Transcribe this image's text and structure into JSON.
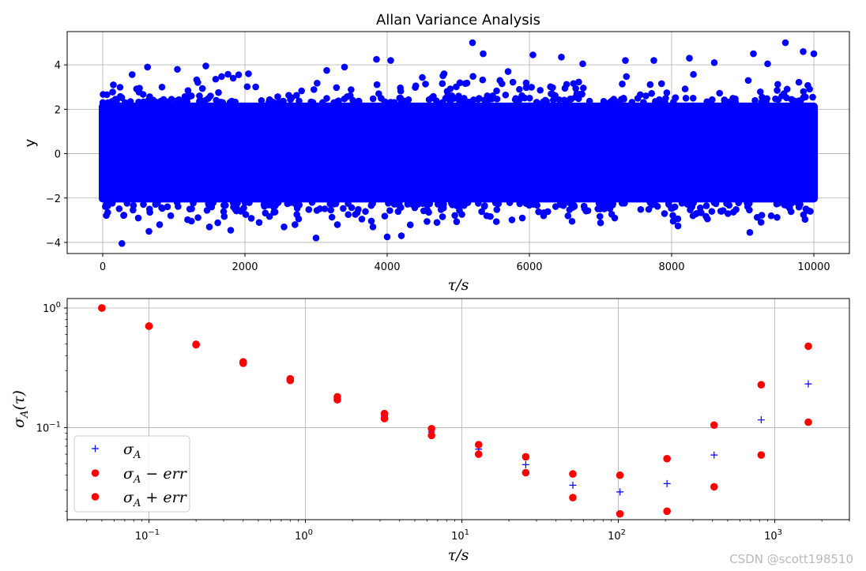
{
  "chart_data": [
    {
      "type": "scatter",
      "title": "Allan Variance Analysis",
      "xlabel": "τ/s",
      "ylabel": "y",
      "xlim": [
        -500,
        10500
      ],
      "ylim": [
        -4.5,
        5.5
      ],
      "xticks": [
        0,
        2000,
        4000,
        6000,
        8000,
        10000
      ],
      "xtick_labels": [
        "0",
        "2000",
        "4000",
        "6000",
        "8000",
        "10000"
      ],
      "yticks": [
        -4,
        -2,
        0,
        2,
        4
      ],
      "ytick_labels": [
        "−4",
        "−2",
        "0",
        "2",
        "4"
      ],
      "grid": true,
      "color": "#0000ff",
      "series": [
        {
          "x_range": [
            0,
            10000
          ],
          "band_low": -2.2,
          "band_high": 2.3,
          "outliers": [
            [
              270,
              -4.05
            ],
            [
              3000,
              -3.8
            ],
            [
              4000,
              -3.75
            ],
            [
              4200,
              -3.7
            ],
            [
              9100,
              -3.55
            ],
            [
              650,
              -3.5
            ],
            [
              1800,
              -3.45
            ],
            [
              2550,
              -3.3
            ],
            [
              4700,
              -3.1
            ],
            [
              6600,
              -3.05
            ],
            [
              5200,
              5.0
            ],
            [
              9600,
              5.0
            ],
            [
              9850,
              4.6
            ],
            [
              5350,
              4.5
            ],
            [
              9150,
              4.5
            ],
            [
              3850,
              4.25
            ],
            [
              4050,
              4.2
            ],
            [
              6050,
              4.45
            ],
            [
              6450,
              4.35
            ],
            [
              7750,
              4.2
            ],
            [
              8250,
              4.3
            ],
            [
              1450,
              3.95
            ],
            [
              630,
              3.9
            ],
            [
              9350,
              4.05
            ],
            [
              10000,
              4.5
            ],
            [
              1050,
              3.8
            ],
            [
              3150,
              3.75
            ],
            [
              5700,
              3.7
            ],
            [
              8600,
              4.1
            ],
            [
              7350,
              4.2
            ],
            [
              150,
              3.1
            ],
            [
              2050,
              3.6
            ],
            [
              3400,
              3.9
            ],
            [
              4800,
              3.6
            ],
            [
              6750,
              4.05
            ],
            [
              800,
              -3.2
            ],
            [
              1500,
              -3.3
            ],
            [
              2200,
              -3.1
            ],
            [
              3300,
              -3.2
            ],
            [
              3800,
              -3.3
            ],
            [
              5400,
              -2.8
            ],
            [
              6200,
              -2.8
            ],
            [
              7200,
              -2.9
            ],
            [
              7900,
              -2.7
            ],
            [
              8700,
              -2.6
            ],
            [
              9400,
              -2.8
            ],
            [
              9950,
              -2.6
            ],
            [
              500,
              -2.9
            ],
            [
              5900,
              -2.9
            ],
            [
              8300,
              -2.8
            ]
          ]
        }
      ]
    },
    {
      "type": "scatter",
      "xlabel": "τ/s",
      "ylabel": "σ_A(τ)",
      "xscale": "log",
      "yscale": "log",
      "xlim": [
        0.03,
        3000
      ],
      "ylim": [
        0.017,
        1.2
      ],
      "xticks": [
        0.1,
        1,
        10,
        100,
        1000
      ],
      "xtick_labels": [
        {
          "base": "10",
          "exp": "−1"
        },
        {
          "base": "10",
          "exp": "0"
        },
        {
          "base": "10",
          "exp": "1"
        },
        {
          "base": "10",
          "exp": "2"
        },
        {
          "base": "10",
          "exp": "3"
        }
      ],
      "yticks": [
        0.1,
        1
      ],
      "ytick_labels": [
        {
          "base": "10",
          "exp": "−1"
        },
        {
          "base": "10",
          "exp": "0"
        }
      ],
      "grid": true,
      "legend": "lower-left",
      "x": [
        0.05,
        0.1,
        0.2,
        0.4,
        0.8,
        1.6,
        3.2,
        6.4,
        12.8,
        25.6,
        51.2,
        102.4,
        204.8,
        409.6,
        819.2,
        1638.4
      ],
      "series": [
        {
          "name": "σ_A",
          "legend_label": {
            "main": "σ",
            "sub": "A",
            "rest": ""
          },
          "marker": "plus",
          "color": "#0000ff",
          "values": [
            1.0,
            0.705,
            0.495,
            0.35,
            0.252,
            0.176,
            0.125,
            0.092,
            0.066,
            0.049,
            0.033,
            0.029,
            0.034,
            0.059,
            0.116,
            0.232
          ]
        },
        {
          "name": "σ_A − err",
          "legend_label": {
            "main": "σ",
            "sub": "A",
            "rest": " − err"
          },
          "marker": "circle",
          "color": "#ff0000",
          "values": [
            1.0,
            0.705,
            0.493,
            0.345,
            0.248,
            0.171,
            0.119,
            0.086,
            0.06,
            0.042,
            0.026,
            0.019,
            0.02,
            0.032,
            0.059,
            0.111
          ]
        },
        {
          "name": "σ_A + err",
          "legend_label": {
            "main": "σ",
            "sub": "A",
            "rest": " + err"
          },
          "marker": "circle",
          "color": "#ff0000",
          "values": [
            1.0,
            0.705,
            0.497,
            0.355,
            0.256,
            0.181,
            0.131,
            0.098,
            0.072,
            0.057,
            0.041,
            0.04,
            0.055,
            0.105,
            0.228,
            0.479
          ]
        }
      ]
    }
  ],
  "watermark": "CSDN @scott198510"
}
